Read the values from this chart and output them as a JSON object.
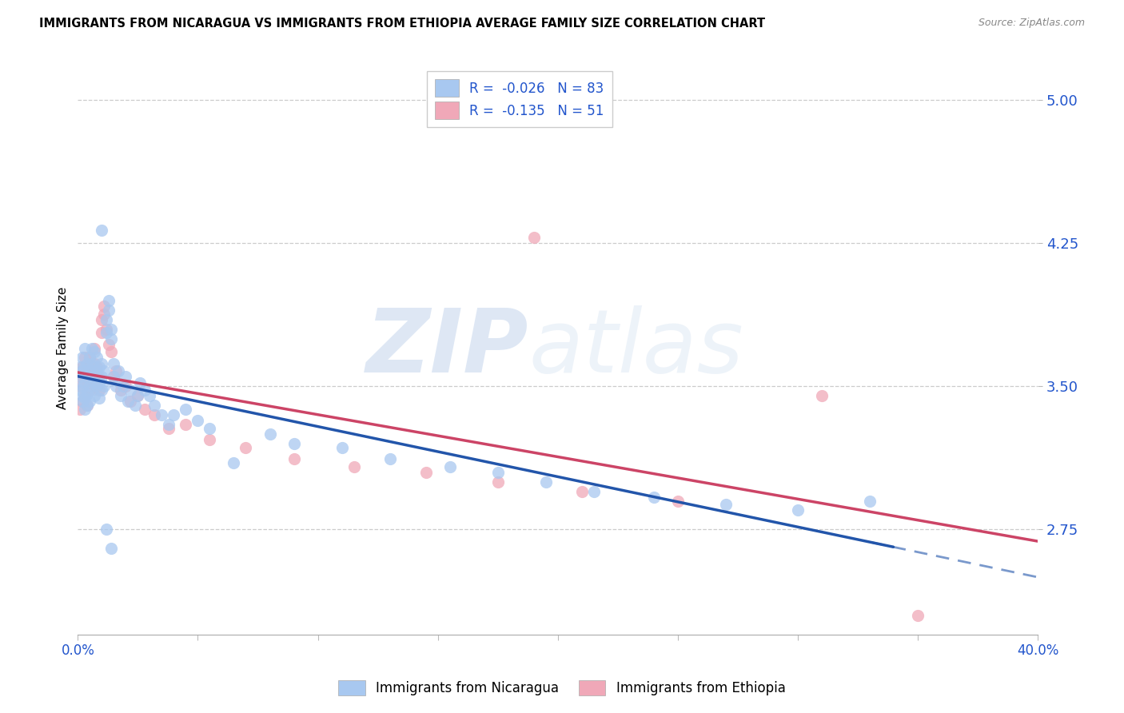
{
  "title": "IMMIGRANTS FROM NICARAGUA VS IMMIGRANTS FROM ETHIOPIA AVERAGE FAMILY SIZE CORRELATION CHART",
  "source": "Source: ZipAtlas.com",
  "ylabel": "Average Family Size",
  "yticks": [
    2.75,
    3.5,
    4.25,
    5.0
  ],
  "xlim": [
    0.0,
    0.4
  ],
  "ylim": [
    2.2,
    5.2
  ],
  "legend_label_1": "Immigrants from Nicaragua",
  "legend_label_2": "Immigrants from Ethiopia",
  "R1": "-0.026",
  "N1": "83",
  "R2": "-0.135",
  "N2": "51",
  "color_nicaragua": "#a8c8f0",
  "color_ethiopia": "#f0a8b8",
  "color_trend_nic": "#2255aa",
  "color_trend_eth": "#cc4466",
  "color_accent": "#2255cc",
  "watermark_zip": "ZIP",
  "watermark_atlas": "atlas",
  "nic_x": [
    0.001,
    0.001,
    0.001,
    0.002,
    0.002,
    0.002,
    0.002,
    0.002,
    0.003,
    0.003,
    0.003,
    0.003,
    0.003,
    0.004,
    0.004,
    0.004,
    0.004,
    0.005,
    0.005,
    0.005,
    0.005,
    0.006,
    0.006,
    0.006,
    0.006,
    0.007,
    0.007,
    0.007,
    0.007,
    0.008,
    0.008,
    0.008,
    0.009,
    0.009,
    0.009,
    0.01,
    0.01,
    0.01,
    0.011,
    0.011,
    0.012,
    0.012,
    0.013,
    0.013,
    0.014,
    0.014,
    0.015,
    0.015,
    0.016,
    0.017,
    0.018,
    0.019,
    0.02,
    0.021,
    0.022,
    0.024,
    0.025,
    0.026,
    0.028,
    0.03,
    0.032,
    0.035,
    0.038,
    0.04,
    0.045,
    0.05,
    0.055,
    0.065,
    0.08,
    0.09,
    0.11,
    0.13,
    0.155,
    0.175,
    0.195,
    0.215,
    0.24,
    0.27,
    0.3,
    0.33,
    0.01,
    0.012,
    0.014
  ],
  "nic_y": [
    3.48,
    3.55,
    3.6,
    3.42,
    3.5,
    3.58,
    3.65,
    3.45,
    3.38,
    3.52,
    3.6,
    3.7,
    3.44,
    3.55,
    3.62,
    3.46,
    3.4,
    3.5,
    3.58,
    3.65,
    3.42,
    3.48,
    3.55,
    3.62,
    3.7,
    3.45,
    3.52,
    3.6,
    3.68,
    3.5,
    3.58,
    3.65,
    3.44,
    3.52,
    3.6,
    3.48,
    3.55,
    3.62,
    3.5,
    3.58,
    3.78,
    3.85,
    3.9,
    3.95,
    3.75,
    3.8,
    3.55,
    3.62,
    3.5,
    3.58,
    3.45,
    3.5,
    3.55,
    3.42,
    3.48,
    3.4,
    3.45,
    3.52,
    3.48,
    3.45,
    3.4,
    3.35,
    3.3,
    3.35,
    3.38,
    3.32,
    3.28,
    3.1,
    3.25,
    3.2,
    3.18,
    3.12,
    3.08,
    3.05,
    3.0,
    2.95,
    2.92,
    2.88,
    2.85,
    2.9,
    4.32,
    2.75,
    2.65
  ],
  "eth_x": [
    0.001,
    0.001,
    0.002,
    0.002,
    0.002,
    0.003,
    0.003,
    0.003,
    0.004,
    0.004,
    0.004,
    0.005,
    0.005,
    0.005,
    0.006,
    0.006,
    0.007,
    0.007,
    0.007,
    0.008,
    0.008,
    0.009,
    0.009,
    0.01,
    0.01,
    0.011,
    0.011,
    0.012,
    0.013,
    0.014,
    0.015,
    0.016,
    0.018,
    0.02,
    0.022,
    0.025,
    0.028,
    0.032,
    0.038,
    0.045,
    0.055,
    0.07,
    0.09,
    0.115,
    0.145,
    0.175,
    0.21,
    0.25,
    0.19,
    0.31,
    0.35
  ],
  "eth_y": [
    3.38,
    3.5,
    3.42,
    3.55,
    3.6,
    3.45,
    3.55,
    3.65,
    3.4,
    3.52,
    3.6,
    3.48,
    3.58,
    3.65,
    3.52,
    3.58,
    3.55,
    3.62,
    3.7,
    3.5,
    3.6,
    3.48,
    3.55,
    3.78,
    3.85,
    3.88,
    3.92,
    3.8,
    3.72,
    3.68,
    3.55,
    3.58,
    3.48,
    3.5,
    3.42,
    3.45,
    3.38,
    3.35,
    3.28,
    3.3,
    3.22,
    3.18,
    3.12,
    3.08,
    3.05,
    3.0,
    2.95,
    2.9,
    4.28,
    3.45,
    2.3
  ]
}
